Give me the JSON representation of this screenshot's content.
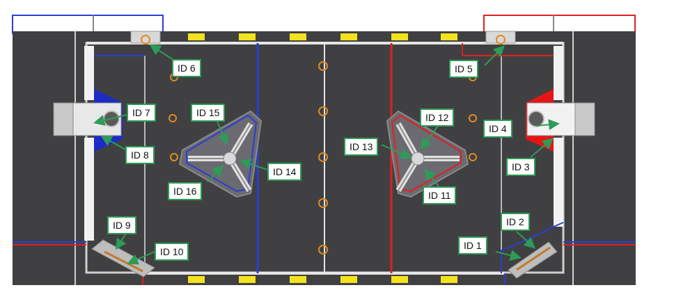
{
  "labels": {
    "id1": "ID 1",
    "id2": "ID 2",
    "id3": "ID 3",
    "id4": "ID 4",
    "id5": "ID 5",
    "id6": "ID 6",
    "id7": "ID 7",
    "id8": "ID 8",
    "id9": "ID 9",
    "id10": "ID 10",
    "id11": "ID 11",
    "id12": "ID 12",
    "id13": "ID 13",
    "id14": "ID 14",
    "id15": "ID 15",
    "id16": "ID 16"
  },
  "colors": {
    "carpet": "#3d3d3f",
    "blue_alliance": "#2b3fd1",
    "red_alliance": "#e02020",
    "label_border": "#2e9b57",
    "arrow": "#2e9b57",
    "line_white": "#e6e6e6",
    "target_yellow": "#f3e21e",
    "ring_orange": "#e08a25"
  },
  "icons": [
    "blue-hexagon-hub",
    "red-hexagon-hub",
    "blue-station",
    "red-station",
    "diagonal-chute",
    "goal-ring",
    "yellow-target"
  ]
}
